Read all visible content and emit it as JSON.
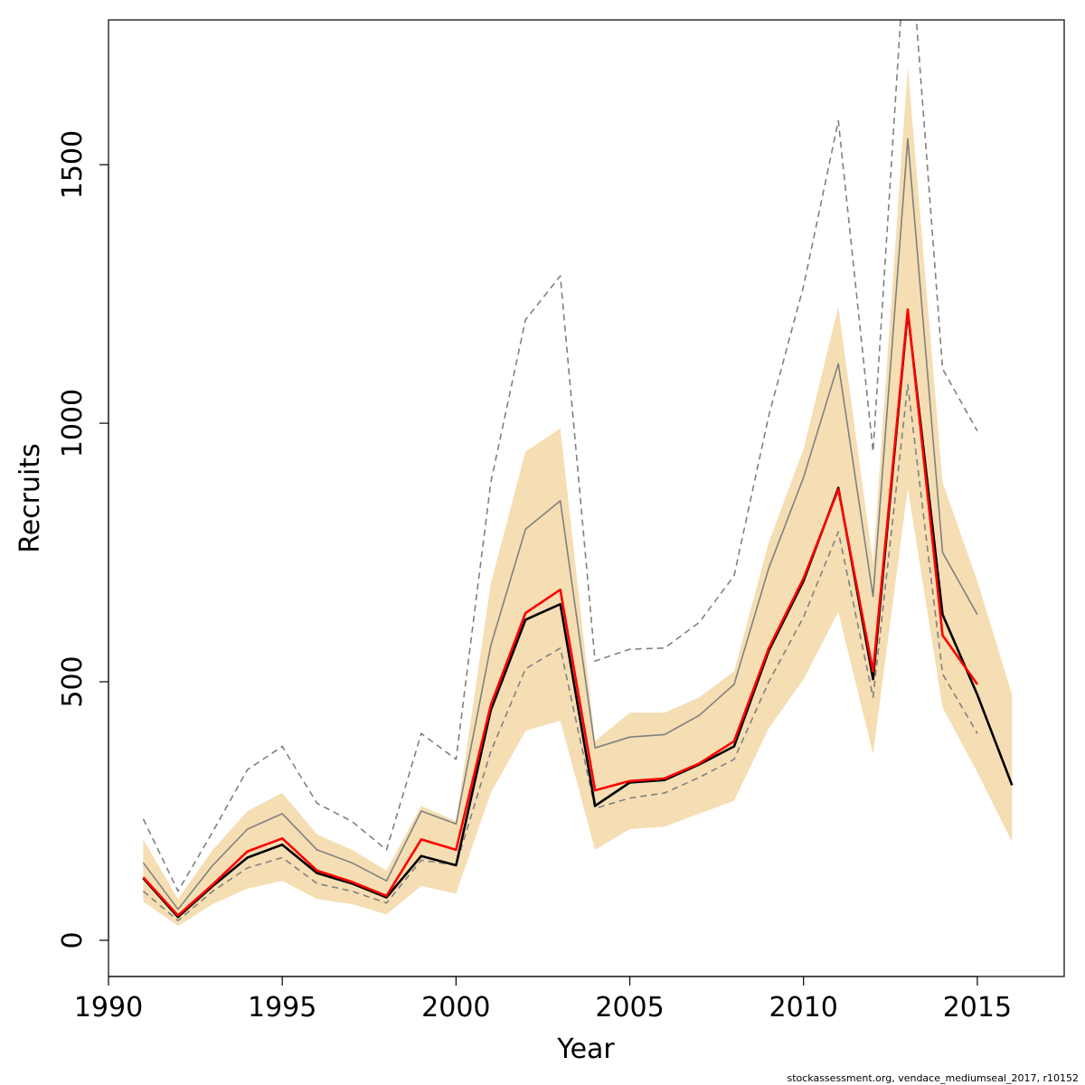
{
  "chart_data": {
    "type": "line",
    "title": "",
    "xlabel": "Year",
    "ylabel": "Recruits",
    "xlim": [
      1990,
      2017.5
    ],
    "ylim": [
      -70,
      1780
    ],
    "x_ticks": [
      1990,
      1995,
      2000,
      2005,
      2010,
      2015
    ],
    "x_tick_labels": [
      "1990",
      "1995",
      "2000",
      "2005",
      "2010",
      "2015"
    ],
    "y_ticks": [
      0,
      500,
      1000,
      1500
    ],
    "y_tick_labels": [
      "0",
      "500",
      "1000",
      "1500"
    ],
    "grid": false,
    "legend": "none",
    "credit": "stockassessment.org, vendace_mediumseal_2017, r10152",
    "band": {
      "color": "#f5deb3",
      "x": [
        1991,
        1992,
        1993,
        1994,
        1995,
        1996,
        1997,
        1998,
        1999,
        2000,
        2001,
        2002,
        2003,
        2004,
        2005,
        2006,
        2007,
        2008,
        2009,
        2010,
        2011,
        2012,
        2013,
        2014,
        2015,
        2016
      ],
      "lower": [
        75,
        28,
        70,
        100,
        115,
        80,
        70,
        50,
        105,
        90,
        285,
        405,
        425,
        175,
        215,
        220,
        245,
        270,
        410,
        505,
        635,
        360,
        875,
        450,
        325,
        190
      ],
      "upper": [
        195,
        80,
        175,
        250,
        285,
        205,
        175,
        135,
        260,
        230,
        690,
        945,
        990,
        385,
        440,
        440,
        470,
        520,
        770,
        950,
        1225,
        730,
        1690,
        885,
        695,
        475
      ]
    },
    "series": [
      {
        "color": "#000000",
        "style": "solid",
        "x": [
          1991,
          1992,
          1993,
          1994,
          1995,
          1996,
          1997,
          1998,
          1999,
          2000,
          2001,
          2002,
          2003,
          2004,
          2005,
          2006,
          2007,
          2008,
          2009,
          2010,
          2011,
          2012,
          2013,
          2014,
          2015,
          2016
        ],
        "values": [
          120,
          45,
          105,
          160,
          185,
          130,
          110,
          83,
          163,
          145,
          445,
          620,
          650,
          260,
          305,
          310,
          340,
          375,
          560,
          695,
          875,
          505,
          1215,
          630,
          475,
          300
        ]
      },
      {
        "color": "#ff0000",
        "style": "solid",
        "x": [
          1991,
          1992,
          1993,
          1994,
          1995,
          1996,
          1997,
          1998,
          1999,
          2000,
          2001,
          2002,
          2003,
          2004,
          2005,
          2006,
          2007,
          2008,
          2009,
          2010,
          2011,
          2012,
          2013,
          2014,
          2015
        ],
        "values": [
          122,
          48,
          108,
          172,
          197,
          135,
          113,
          86,
          195,
          175,
          455,
          633,
          678,
          290,
          308,
          313,
          342,
          385,
          565,
          700,
          872,
          520,
          1220,
          590,
          495
        ]
      },
      {
        "color": "#808080",
        "style": "solid",
        "x": [
          1991,
          1992,
          1993,
          1994,
          1995,
          1996,
          1997,
          1998,
          1999,
          2000,
          2001,
          2002,
          2003,
          2004,
          2005,
          2006,
          2007,
          2008,
          2009,
          2010,
          2011,
          2012,
          2013,
          2014,
          2015
        ],
        "values": [
          150,
          60,
          145,
          215,
          245,
          175,
          150,
          115,
          250,
          225,
          570,
          795,
          850,
          372,
          393,
          398,
          435,
          495,
          720,
          895,
          1115,
          665,
          1550,
          750,
          630
        ]
      },
      {
        "color": "#808080",
        "style": "dashed",
        "x": [
          1991,
          1992,
          1993,
          1994,
          1995,
          1996,
          1997,
          1998,
          1999,
          2000,
          2001,
          2002,
          2003,
          2004,
          2005,
          2006,
          2007,
          2008,
          2009,
          2010,
          2011,
          2012,
          2013,
          2014,
          2015
        ],
        "values": [
          235,
          95,
          210,
          330,
          375,
          265,
          230,
          175,
          400,
          350,
          885,
          1200,
          1285,
          540,
          563,
          565,
          615,
          705,
          1015,
          1265,
          1585,
          945,
          2000,
          1105,
          985
        ]
      },
      {
        "color": "#808080",
        "style": "dashed",
        "x": [
          1991,
          1992,
          1993,
          1994,
          1995,
          1996,
          1997,
          1998,
          1999,
          2000,
          2001,
          2002,
          2003,
          2004,
          2005,
          2006,
          2007,
          2008,
          2009,
          2010,
          2011,
          2012,
          2013,
          2014,
          2015
        ],
        "values": [
          95,
          38,
          95,
          140,
          160,
          110,
          95,
          72,
          155,
          145,
          365,
          525,
          565,
          255,
          275,
          285,
          315,
          350,
          500,
          625,
          790,
          470,
          1075,
          515,
          400
        ]
      }
    ]
  }
}
